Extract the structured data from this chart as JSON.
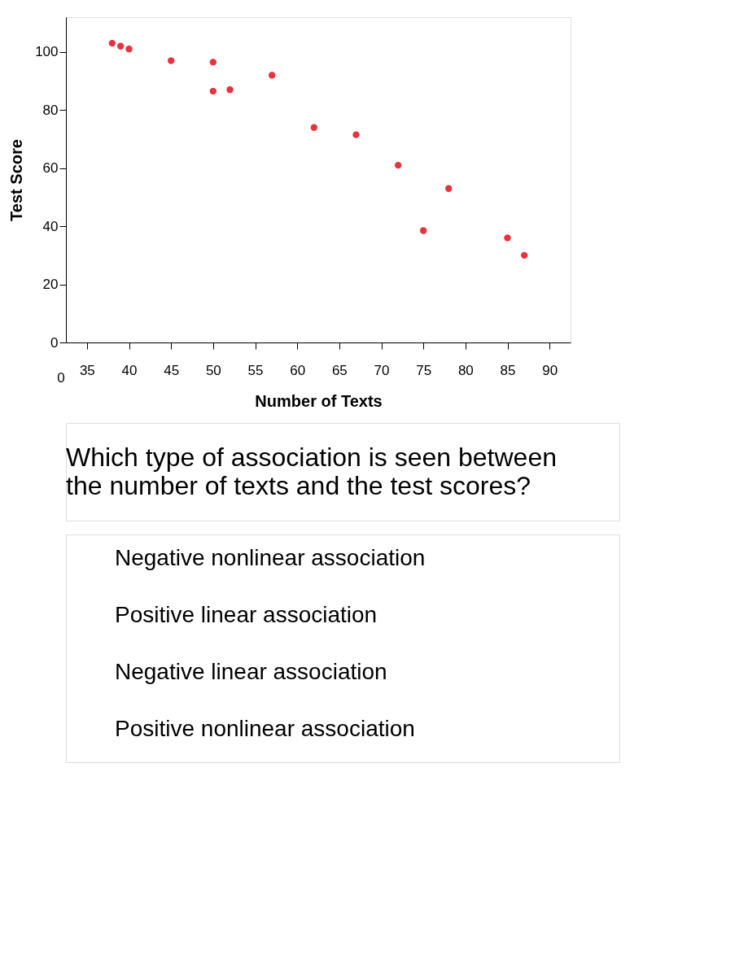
{
  "chart_data": {
    "type": "scatter",
    "xlabel": "Number of Texts",
    "ylabel": "Test Score",
    "x": [
      38,
      39,
      40,
      45,
      50,
      50,
      52,
      57,
      62,
      67,
      72,
      75,
      78,
      85,
      87
    ],
    "series": [
      {
        "color": "#e8323c",
        "values": [
          103,
          102,
          101,
          97,
          96.5,
          86.5,
          87,
          92,
          74,
          71.5,
          61,
          38.5,
          53,
          36,
          30
        ]
      }
    ],
    "xlim": [
      32.5,
      92.5
    ],
    "xticks": [
      35,
      40,
      45,
      50,
      55,
      60,
      65,
      70,
      75,
      80,
      85,
      90
    ],
    "ylim": [
      0,
      112
    ],
    "yticks": [
      0,
      20,
      40,
      60,
      80,
      100
    ],
    "grid": false,
    "marker": "circle",
    "annotations": [
      "0",
      "Which type of association is seen between the number of texts and the test scores?",
      "Negative nonlinear association",
      "Positive linear association",
      "Negative linear association",
      "Positive nonlinear association"
    ]
  }
}
